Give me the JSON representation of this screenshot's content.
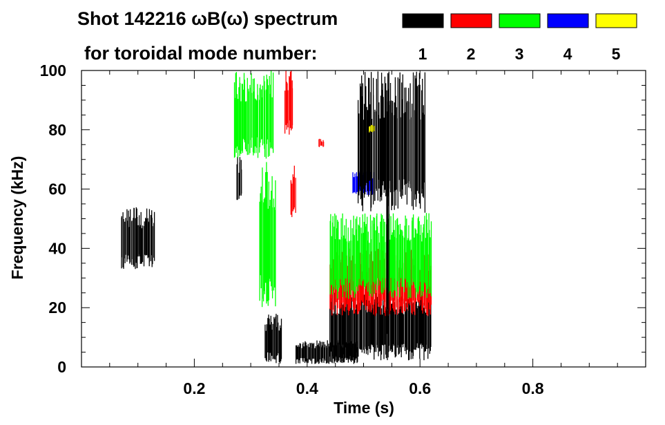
{
  "chart_data": {
    "type": "heatmap",
    "title": "Shot 142216 ωB(ω) spectrum",
    "legend_caption": "for toroidal mode number:",
    "xlabel": "Time (s)",
    "ylabel": "Frequency (kHz)",
    "xlim": [
      0.0,
      1.0
    ],
    "ylim": [
      0,
      100
    ],
    "x_ticks": [
      0.2,
      0.4,
      0.6,
      0.8
    ],
    "y_ticks": [
      0,
      20,
      40,
      60,
      80,
      100
    ],
    "grid": false,
    "legend_position": "top-right",
    "modes": [
      {
        "label": "1",
        "color": "#000000"
      },
      {
        "label": "2",
        "color": "#ff0000"
      },
      {
        "label": "3",
        "color": "#00ff00"
      },
      {
        "label": "4",
        "color": "#0000ff"
      },
      {
        "label": "5",
        "color": "#ffff00"
      }
    ],
    "regions": [
      {
        "mode": "1",
        "t": [
          0.07,
          0.13
        ],
        "f": [
          33,
          54
        ]
      },
      {
        "mode": "1",
        "t": [
          0.275,
          0.285
        ],
        "f": [
          55,
          71
        ]
      },
      {
        "mode": "3",
        "t": [
          0.27,
          0.34
        ],
        "f": [
          70,
          100
        ]
      },
      {
        "mode": "3",
        "t": [
          0.315,
          0.345
        ],
        "f": [
          20,
          70
        ]
      },
      {
        "mode": "2",
        "t": [
          0.36,
          0.375
        ],
        "f": [
          78,
          100
        ]
      },
      {
        "mode": "2",
        "t": [
          0.37,
          0.38
        ],
        "f": [
          50,
          68
        ]
      },
      {
        "mode": "1",
        "t": [
          0.325,
          0.355
        ],
        "f": [
          1,
          18
        ]
      },
      {
        "mode": "1",
        "t": [
          0.38,
          0.49
        ],
        "f": [
          1,
          9
        ]
      },
      {
        "mode": "1",
        "t": [
          0.44,
          0.62
        ],
        "f": [
          2,
          26
        ]
      },
      {
        "mode": "2",
        "t": [
          0.44,
          0.62
        ],
        "f": [
          17,
          40
        ]
      },
      {
        "mode": "3",
        "t": [
          0.44,
          0.62
        ],
        "f": [
          23,
          52
        ]
      },
      {
        "mode": "4",
        "t": [
          0.48,
          0.52
        ],
        "f": [
          58,
          66
        ]
      },
      {
        "mode": "1",
        "t": [
          0.54,
          0.545
        ],
        "f": [
          0,
          100
        ]
      },
      {
        "mode": "1",
        "t": [
          0.49,
          0.61
        ],
        "f": [
          52,
          100
        ]
      },
      {
        "mode": "2",
        "t": [
          0.42,
          0.43
        ],
        "f": [
          74,
          77
        ]
      },
      {
        "mode": "5",
        "t": [
          0.51,
          0.52
        ],
        "f": [
          79,
          82
        ]
      }
    ]
  }
}
